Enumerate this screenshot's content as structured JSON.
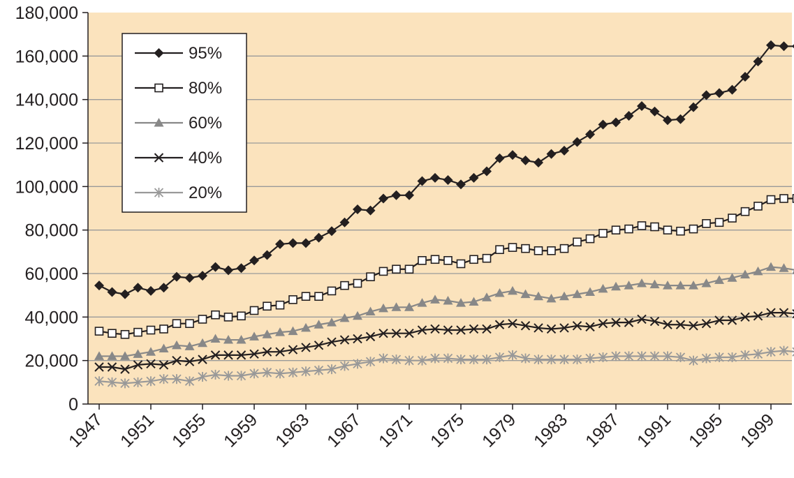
{
  "chart_data": {
    "type": "line",
    "xlim": [
      1947,
      2001
    ],
    "ylim": [
      0,
      180000
    ],
    "x_ticks": [
      "1947",
      "1951",
      "1955",
      "1959",
      "1963",
      "1967",
      "1971",
      "1975",
      "1979",
      "1983",
      "1987",
      "1991",
      "1995",
      "1999"
    ],
    "y_ticks": [
      "0",
      "20,000",
      "40,000",
      "60,000",
      "80,000",
      "100,000",
      "120,000",
      "140,000",
      "160,000",
      "180,000"
    ],
    "grid": true,
    "legend_position": "top-left",
    "x": [
      1947,
      1948,
      1949,
      1950,
      1951,
      1952,
      1953,
      1954,
      1955,
      1956,
      1957,
      1958,
      1959,
      1960,
      1961,
      1962,
      1963,
      1964,
      1965,
      1966,
      1967,
      1968,
      1969,
      1970,
      1971,
      1972,
      1973,
      1974,
      1975,
      1976,
      1977,
      1978,
      1979,
      1980,
      1981,
      1982,
      1983,
      1984,
      1985,
      1986,
      1987,
      1988,
      1989,
      1990,
      1991,
      1992,
      1993,
      1994,
      1995,
      1996,
      1997,
      1998,
      1999,
      2000,
      2001
    ],
    "series": [
      {
        "name": "95%",
        "marker": "diamond",
        "color": "#231f20",
        "values": [
          54500,
          51500,
          50500,
          53500,
          52000,
          53500,
          58500,
          58000,
          59000,
          63000,
          61500,
          62500,
          66000,
          68500,
          73500,
          74000,
          74000,
          76500,
          79500,
          83500,
          89500,
          89000,
          94500,
          96000,
          96000,
          102500,
          104000,
          103000,
          101000,
          104000,
          107000,
          113000,
          114500,
          112000,
          111000,
          115000,
          116500,
          120500,
          124000,
          128500,
          129500,
          132500,
          137000,
          134500,
          130500,
          131000,
          136500,
          142000,
          143000,
          144500,
          150500,
          157500,
          165000,
          164500,
          164500
        ]
      },
      {
        "name": "80%",
        "marker": "square",
        "color": "#231f20",
        "values": [
          33500,
          32500,
          32000,
          33000,
          34000,
          34500,
          37000,
          37000,
          39000,
          41000,
          40000,
          40500,
          43000,
          45000,
          45500,
          48000,
          49500,
          49500,
          52000,
          54500,
          55500,
          58500,
          61000,
          62000,
          62000,
          66000,
          66500,
          66000,
          64500,
          66500,
          67000,
          71000,
          72000,
          71500,
          70500,
          70500,
          71500,
          74500,
          76000,
          78500,
          80000,
          80500,
          82000,
          81500,
          80000,
          79500,
          80500,
          83000,
          83500,
          85500,
          88500,
          91000,
          94000,
          94500,
          94500
        ]
      },
      {
        "name": "60%",
        "marker": "triangle",
        "color": "#888888",
        "values": [
          22000,
          22000,
          22000,
          23000,
          24000,
          25500,
          27000,
          26500,
          28000,
          30000,
          29500,
          29500,
          31000,
          32000,
          33000,
          33500,
          35000,
          36500,
          37500,
          39500,
          40500,
          42500,
          44000,
          44500,
          44500,
          46500,
          48000,
          47500,
          46500,
          47000,
          49000,
          51000,
          52000,
          50500,
          49500,
          48500,
          49500,
          50500,
          51500,
          53000,
          54000,
          54500,
          55500,
          55000,
          54500,
          54500,
          54500,
          55500,
          57000,
          58000,
          59500,
          61000,
          63000,
          62500,
          61500
        ]
      },
      {
        "name": "40%",
        "marker": "x",
        "color": "#231f20",
        "values": [
          17000,
          17000,
          16000,
          18000,
          18500,
          18000,
          20000,
          19500,
          20500,
          22500,
          22500,
          22500,
          23000,
          24000,
          24000,
          25000,
          26000,
          27000,
          28500,
          29500,
          30000,
          31000,
          32500,
          32500,
          32500,
          34000,
          34500,
          34000,
          34000,
          34500,
          34500,
          36500,
          37000,
          36000,
          35000,
          34500,
          35000,
          36000,
          35500,
          37000,
          37500,
          37500,
          39000,
          38000,
          36500,
          36500,
          36000,
          37000,
          38500,
          38500,
          40000,
          40500,
          42000,
          42000,
          41500
        ]
      },
      {
        "name": "20%",
        "marker": "asterisk",
        "color": "#999999",
        "values": [
          10500,
          10000,
          9500,
          10000,
          10500,
          11500,
          11500,
          10500,
          12500,
          13500,
          13000,
          13000,
          14000,
          14500,
          14000,
          14500,
          15000,
          15500,
          16000,
          17500,
          18500,
          19500,
          21000,
          20500,
          20000,
          20000,
          21000,
          21000,
          20500,
          20500,
          20500,
          21500,
          22500,
          21000,
          20500,
          20500,
          20500,
          20500,
          21000,
          21500,
          22000,
          22000,
          22000,
          22000,
          22000,
          21500,
          20000,
          21000,
          21500,
          21500,
          22500,
          23000,
          24000,
          24500,
          24000
        ]
      }
    ]
  }
}
